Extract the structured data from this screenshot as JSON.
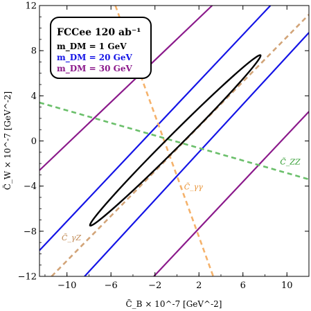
{
  "chart_data": {
    "type": "line",
    "xlabel": "C̃_B × 10^-7 [GeV^-2]",
    "ylabel": "C̃_W × 10^-7 [GeV^-2]",
    "xlim": [
      -12.5,
      12
    ],
    "ylim": [
      -12,
      12
    ],
    "xticks": [
      -10,
      -6,
      -2,
      2,
      6,
      10
    ],
    "yticks": [
      -12,
      -8,
      -4,
      0,
      4,
      8,
      12
    ],
    "grid": false,
    "legend": {
      "position": "top-left",
      "title": "FCCee  120 ab⁻¹",
      "entries": [
        {
          "label": "m_DM = 1 GeV",
          "color": "#000000"
        },
        {
          "label": "m_DM = 20 GeV",
          "color": "#1414e6"
        },
        {
          "label": "m_DM = 30 GeV",
          "color": "#8b1a8b"
        }
      ]
    },
    "series": [
      {
        "name": "m_DM = 20 GeV",
        "color": "#1414e6",
        "style": "solid",
        "lines": [
          {
            "x": [
              -12.5,
              8.5
            ],
            "y": [
              -9.7,
              12
            ]
          },
          {
            "x": [
              -8.4,
              12
            ],
            "y": [
              -12,
              9.6
            ]
          }
        ]
      },
      {
        "name": "m_DM = 30 GeV",
        "color": "#8b1a8b",
        "style": "solid",
        "lines": [
          {
            "x": [
              -12.5,
              3.2
            ],
            "y": [
              -2.6,
              12
            ]
          },
          {
            "x": [
              -2.1,
              12
            ],
            "y": [
              -12,
              2.6
            ]
          }
        ]
      },
      {
        "name": "C̃_γγ",
        "color": "#f5b26b",
        "style": "dashed",
        "lines": [
          {
            "x": [
              -5.6,
              3.3
            ],
            "y": [
              12,
              -12
            ]
          }
        ]
      },
      {
        "name": "C̃_γZ",
        "color": "#d2a478",
        "style": "dashed",
        "lines": [
          {
            "x": [
              -11.4,
              12
            ],
            "y": [
              -12,
              11.2
            ]
          }
        ]
      },
      {
        "name": "C̃_ZZ",
        "color": "#6abf6a",
        "style": "dashed",
        "lines": [
          {
            "x": [
              -12.5,
              12
            ],
            "y": [
              3.4,
              -3.4
            ]
          }
        ]
      }
    ],
    "ellipse": {
      "name": "m_DM = 1 GeV",
      "color": "#000000",
      "center": [
        0,
        0
      ],
      "tip_a": [
        7.6,
        7.6
      ],
      "tip_b": [
        -7.9,
        -7.5
      ],
      "half_width": 0.6
    },
    "annotations": [
      {
        "text": "C̃_ZZ",
        "x": 10.3,
        "y": -2.1,
        "color": "#2e9b2e"
      },
      {
        "text": "C̃_γγ",
        "x": 1.5,
        "y": -4.3,
        "color": "#e8953a"
      },
      {
        "text": "C̃_γZ",
        "x": -9.6,
        "y": -8.8,
        "color": "#c08a55"
      }
    ]
  }
}
